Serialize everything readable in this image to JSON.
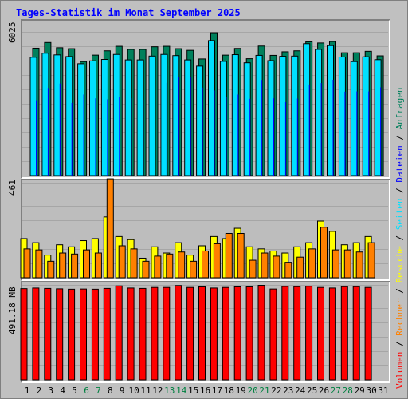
{
  "title": "Tages-Statistik im Monat September 2025",
  "colors": {
    "anfragen": "#00805c",
    "dateien": "#0000ff",
    "seiten": "#00e0ff",
    "besuche": "#ffff00",
    "rechner": "#ff8000",
    "volumen": "#ff0000",
    "weekend_label": "#008040",
    "weekday_label": "#000000"
  },
  "legend": [
    {
      "label": "Volumen",
      "color": "#ff0000"
    },
    {
      "label": " / ",
      "color": "#000000"
    },
    {
      "label": "Rechner",
      "color": "#ff8000"
    },
    {
      "label": " / ",
      "color": "#000000"
    },
    {
      "label": "Besuche",
      "color": "#ffff00"
    },
    {
      "label": " / ",
      "color": "#000000"
    },
    {
      "label": "Seiten",
      "color": "#00e0ff"
    },
    {
      "label": " / ",
      "color": "#000000"
    },
    {
      "label": "Dateien",
      "color": "#0000ff"
    },
    {
      "label": " / ",
      "color": "#000000"
    },
    {
      "label": "Anfragen",
      "color": "#00805c"
    }
  ],
  "chart_data": [
    {
      "type": "bar",
      "panel": "anfragen",
      "ymax_label": "6025",
      "ylim": [
        0,
        6025
      ],
      "categories": [
        "1",
        "2",
        "3",
        "4",
        "5",
        "6",
        "7",
        "8",
        "9",
        "10",
        "11",
        "12",
        "13",
        "14",
        "15",
        "16",
        "17",
        "18",
        "19",
        "20",
        "21",
        "22",
        "23",
        "24",
        "25",
        "26",
        "27",
        "28",
        "29",
        "30"
      ],
      "weekend": [
        "6",
        "7",
        "13",
        "14",
        "20",
        "21",
        "27",
        "28"
      ],
      "series": [
        {
          "name": "Anfragen",
          "values": [
            5340,
            5580,
            5360,
            5320,
            4780,
            5050,
            5230,
            5420,
            5290,
            5290,
            5400,
            5420,
            5320,
            5250,
            4890,
            5990,
            5050,
            5330,
            4900,
            5430,
            5040,
            5190,
            5230,
            5610,
            5560,
            5620,
            5150,
            5150,
            5210,
            5020
          ]
        },
        {
          "name": "Dateien",
          "values": [
            3160,
            3670,
            3860,
            3050,
            3400,
            3240,
            3200,
            3290,
            3240,
            3180,
            4160,
            3890,
            4150,
            4150,
            3690,
            3570,
            3300,
            3400,
            3220,
            4010,
            3240,
            3080,
            3230,
            3820,
            3880,
            4020,
            3520,
            3530,
            3530,
            3700
          ]
        },
        {
          "name": "Seiten",
          "values": [
            4960,
            5130,
            5060,
            4990,
            4690,
            4810,
            4870,
            5080,
            4850,
            4850,
            5010,
            5080,
            5030,
            4850,
            4590,
            5660,
            4790,
            5070,
            4730,
            5040,
            4820,
            5000,
            5010,
            5530,
            5290,
            5450,
            4970,
            4780,
            4980,
            4860
          ]
        }
      ]
    },
    {
      "type": "bar",
      "panel": "besuche",
      "ymax_label": "461",
      "ylim": [
        0,
        461
      ],
      "categories": [
        "1",
        "2",
        "3",
        "4",
        "5",
        "6",
        "7",
        "8",
        "9",
        "10",
        "11",
        "12",
        "13",
        "14",
        "15",
        "16",
        "17",
        "18",
        "19",
        "20",
        "21",
        "22",
        "23",
        "24",
        "25",
        "26",
        "27",
        "28",
        "29",
        "30"
      ],
      "series": [
        {
          "name": "Besuche",
          "values": [
            190,
            170,
            110,
            160,
            150,
            180,
            190,
            295,
            200,
            185,
            95,
            150,
            120,
            170,
            110,
            155,
            200,
            190,
            240,
            150,
            140,
            130,
            120,
            150,
            170,
            275,
            225,
            160,
            170,
            200
          ]
        },
        {
          "name": "Rechner",
          "values": [
            140,
            135,
            80,
            120,
            115,
            135,
            120,
            480,
            155,
            140,
            80,
            105,
            115,
            125,
            80,
            130,
            165,
            215,
            215,
            85,
            120,
            105,
            75,
            100,
            140,
            245,
            135,
            135,
            125,
            170
          ]
        }
      ]
    },
    {
      "type": "bar",
      "panel": "volumen",
      "ymax_label": "491.18 MB",
      "ylim": [
        0,
        491.18
      ],
      "categories": [
        "1",
        "2",
        "3",
        "4",
        "5",
        "6",
        "7",
        "8",
        "9",
        "10",
        "11",
        "12",
        "13",
        "14",
        "15",
        "16",
        "17",
        "18",
        "19",
        "20",
        "21",
        "22",
        "23",
        "24",
        "25",
        "26",
        "27",
        "28",
        "29",
        "30"
      ],
      "series": [
        {
          "name": "Volumen",
          "values": [
            472,
            475,
            473,
            471,
            469,
            470,
            469,
            473,
            486,
            475,
            473,
            478,
            478,
            488,
            478,
            481,
            475,
            478,
            481,
            481,
            489,
            470,
            483,
            482,
            484,
            478,
            475,
            482,
            482,
            478
          ]
        }
      ]
    }
  ],
  "x_labels": [
    "1",
    "2",
    "3",
    "4",
    "5",
    "6",
    "7",
    "8",
    "9",
    "10",
    "11",
    "12",
    "13",
    "14",
    "15",
    "16",
    "17",
    "18",
    "19",
    "20",
    "21",
    "22",
    "23",
    "24",
    "25",
    "26",
    "27",
    "28",
    "29",
    "30",
    "31"
  ]
}
